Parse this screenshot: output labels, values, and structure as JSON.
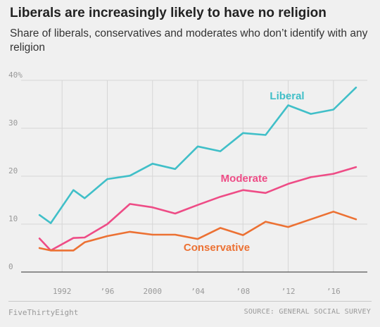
{
  "title": "Liberals are increasingly likely to have no religion",
  "subtitle": "Share of liberals, conservatives and moderates who don’t identify with any religion",
  "footer": {
    "brand": "FiveThirtyEight",
    "source": "SOURCE: GENERAL SOCIAL SURVEY"
  },
  "chart_data": {
    "type": "line",
    "title": "Liberals are increasingly likely to have no religion",
    "subtitle": "Share of liberals, conservatives and moderates who don’t identify with any religion",
    "xlabel": "",
    "ylabel": "",
    "xlim": [
      1989,
      2019
    ],
    "ylim": [
      0,
      40
    ],
    "grid": true,
    "legend": "direct labels",
    "x_ticks": [
      {
        "value": 1992,
        "label": "1992"
      },
      {
        "value": 1996,
        "label": "’96"
      },
      {
        "value": 2000,
        "label": "2000"
      },
      {
        "value": 2004,
        "label": "’04"
      },
      {
        "value": 2008,
        "label": "’08"
      },
      {
        "value": 2012,
        "label": "’12"
      },
      {
        "value": 2016,
        "label": "’16"
      }
    ],
    "y_ticks": [
      {
        "value": 0,
        "label": "0"
      },
      {
        "value": 10,
        "label": "10"
      },
      {
        "value": 20,
        "label": "20"
      },
      {
        "value": 30,
        "label": "30"
      },
      {
        "value": 40,
        "label": "40%"
      }
    ],
    "series": [
      {
        "name": "Liberal",
        "color": "#40bfc8",
        "x": [
          1990,
          1991,
          1993,
          1994,
          1996,
          1998,
          2000,
          2002,
          2004,
          2006,
          2008,
          2010,
          2012,
          2014,
          2016,
          2018
        ],
        "values": [
          11.9,
          10.2,
          17.1,
          15.4,
          19.4,
          20.1,
          22.6,
          21.5,
          26.2,
          25.2,
          29.0,
          28.6,
          34.8,
          33.0,
          33.9,
          38.5
        ]
      },
      {
        "name": "Moderate",
        "color": "#ee4c86",
        "x": [
          1990,
          1991,
          1993,
          1994,
          1996,
          1998,
          2000,
          2002,
          2004,
          2006,
          2008,
          2010,
          2012,
          2014,
          2016,
          2018
        ],
        "values": [
          7.0,
          4.5,
          7.1,
          7.2,
          10.0,
          14.2,
          13.5,
          12.2,
          14.0,
          15.7,
          17.1,
          16.5,
          18.4,
          19.8,
          20.5,
          21.9
        ]
      },
      {
        "name": "Conservative",
        "color": "#ec7133",
        "x": [
          1990,
          1991,
          1993,
          1994,
          1996,
          1998,
          2000,
          2002,
          2004,
          2006,
          2008,
          2010,
          2012,
          2014,
          2016,
          2018
        ],
        "values": [
          5.0,
          4.5,
          4.5,
          6.2,
          7.5,
          8.4,
          7.8,
          7.8,
          6.9,
          9.2,
          7.7,
          10.5,
          9.4,
          11.0,
          12.6,
          11.0
        ]
      }
    ]
  }
}
